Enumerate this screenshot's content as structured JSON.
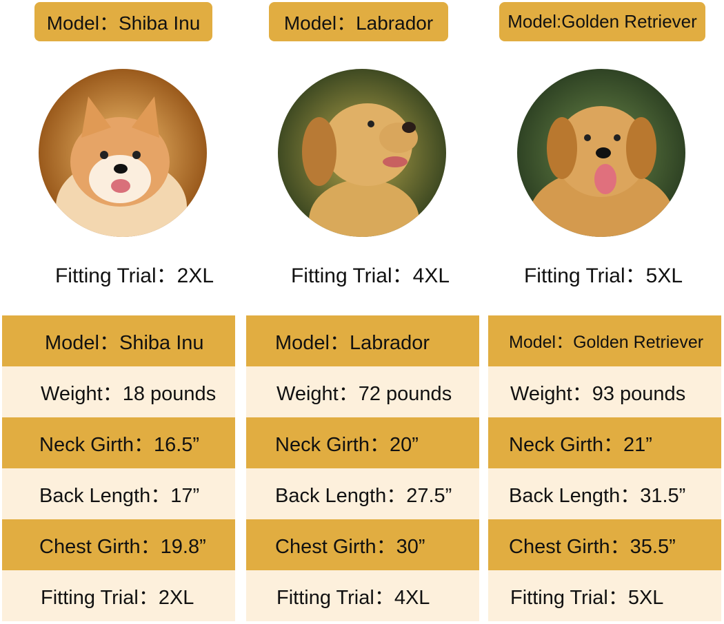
{
  "colors": {
    "gold": "#e1ad41",
    "cream": "#fdf0dc"
  },
  "dogs": [
    {
      "header": "Model：Shiba Inu",
      "photo": "shiba-inu-photo",
      "trial": "Fitting Trial：2XL",
      "rows": [
        "Model：Shiba Inu",
        "Weight：18 pounds",
        "Neck Girth：16.5”",
        "Back Length：17”",
        "Chest Girth：19.8”",
        "Fitting Trial：2XL"
      ]
    },
    {
      "header": "Model：Labrador",
      "photo": "labrador-photo",
      "trial": "Fitting Trial：4XL",
      "rows": [
        "Model：Labrador",
        "Weight：72 pounds",
        "Neck Girth：20”",
        "Back Length：27.5”",
        "Chest Girth：30”",
        "Fitting Trial：4XL"
      ]
    },
    {
      "header": "Model:Golden Retriever",
      "photo": "golden-retriever-photo",
      "trial": "Fitting Trial：5XL",
      "rows": [
        "Model：Golden Retriever",
        "Weight：93 pounds",
        "Neck Girth：21”",
        "Back Length：31.5”",
        "Chest Girth：35.5”",
        "Fitting Trial：5XL"
      ]
    }
  ]
}
